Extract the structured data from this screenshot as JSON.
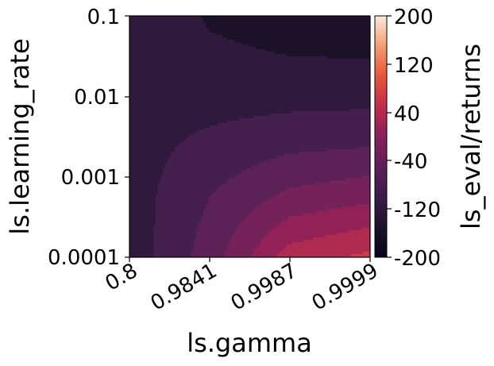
{
  "chart_data": {
    "type": "contour",
    "xlabel": "ls.gamma",
    "ylabel": "ls.learning_rate",
    "colorbar_label": "ls_eval/returns",
    "x_ticks": [
      "0.8",
      "0.9841",
      "0.9987",
      "0.9999"
    ],
    "y_ticks": [
      "0.0001",
      "0.001",
      "0.01",
      "0.1"
    ],
    "y_scale": "log",
    "ylim": [
      0.0001,
      0.1
    ],
    "colorbar_ticks": [
      "200",
      "120",
      "40",
      "-40",
      "-120",
      "-200"
    ],
    "colorbar_range": [
      -200,
      200
    ],
    "levels": [
      -200,
      -160,
      -120,
      -80,
      -40,
      0,
      40,
      80,
      120,
      160,
      200
    ],
    "colormap": "rocket",
    "level_colors": [
      "#1b1228",
      "#2f1a3d",
      "#451f4d",
      "#5c2157",
      "#76225a",
      "#922158",
      "#af2a4f",
      "#cc3d46",
      "#e25a40",
      "#ef7a55",
      "#f5a27e"
    ],
    "grid_values": [
      [
        -120,
        -165,
        -180,
        -185
      ],
      [
        -130,
        -145,
        -150,
        -150
      ],
      [
        -135,
        -115,
        -100,
        -95
      ],
      [
        -140,
        -80,
        -30,
        -10
      ],
      [
        -145,
        -60,
        60,
        90
      ]
    ],
    "grid": false
  }
}
